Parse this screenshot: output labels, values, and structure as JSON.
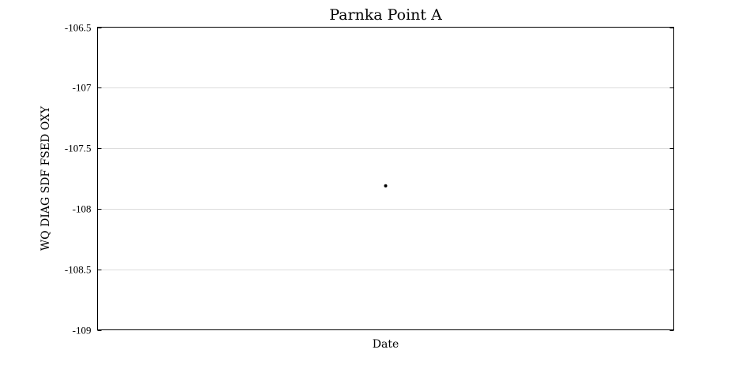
{
  "chart_data": {
    "type": "scatter",
    "title": "Parnka Point A",
    "xlabel": "Date",
    "ylabel": "WQ DIAG SDF FSED OXY",
    "ylim": [
      -109,
      -106.5
    ],
    "yticks": [
      -106.5,
      -107,
      -107.5,
      -108,
      -108.5,
      -109
    ],
    "ytick_labels": [
      "-106.5",
      "-107",
      "-107.5",
      "-108",
      "-108.5",
      "-109"
    ],
    "grid": true,
    "series": [
      {
        "x": [
          0.5
        ],
        "y": [
          -107.81
        ],
        "color": "#000000"
      }
    ],
    "xlim": [
      0,
      1
    ]
  }
}
